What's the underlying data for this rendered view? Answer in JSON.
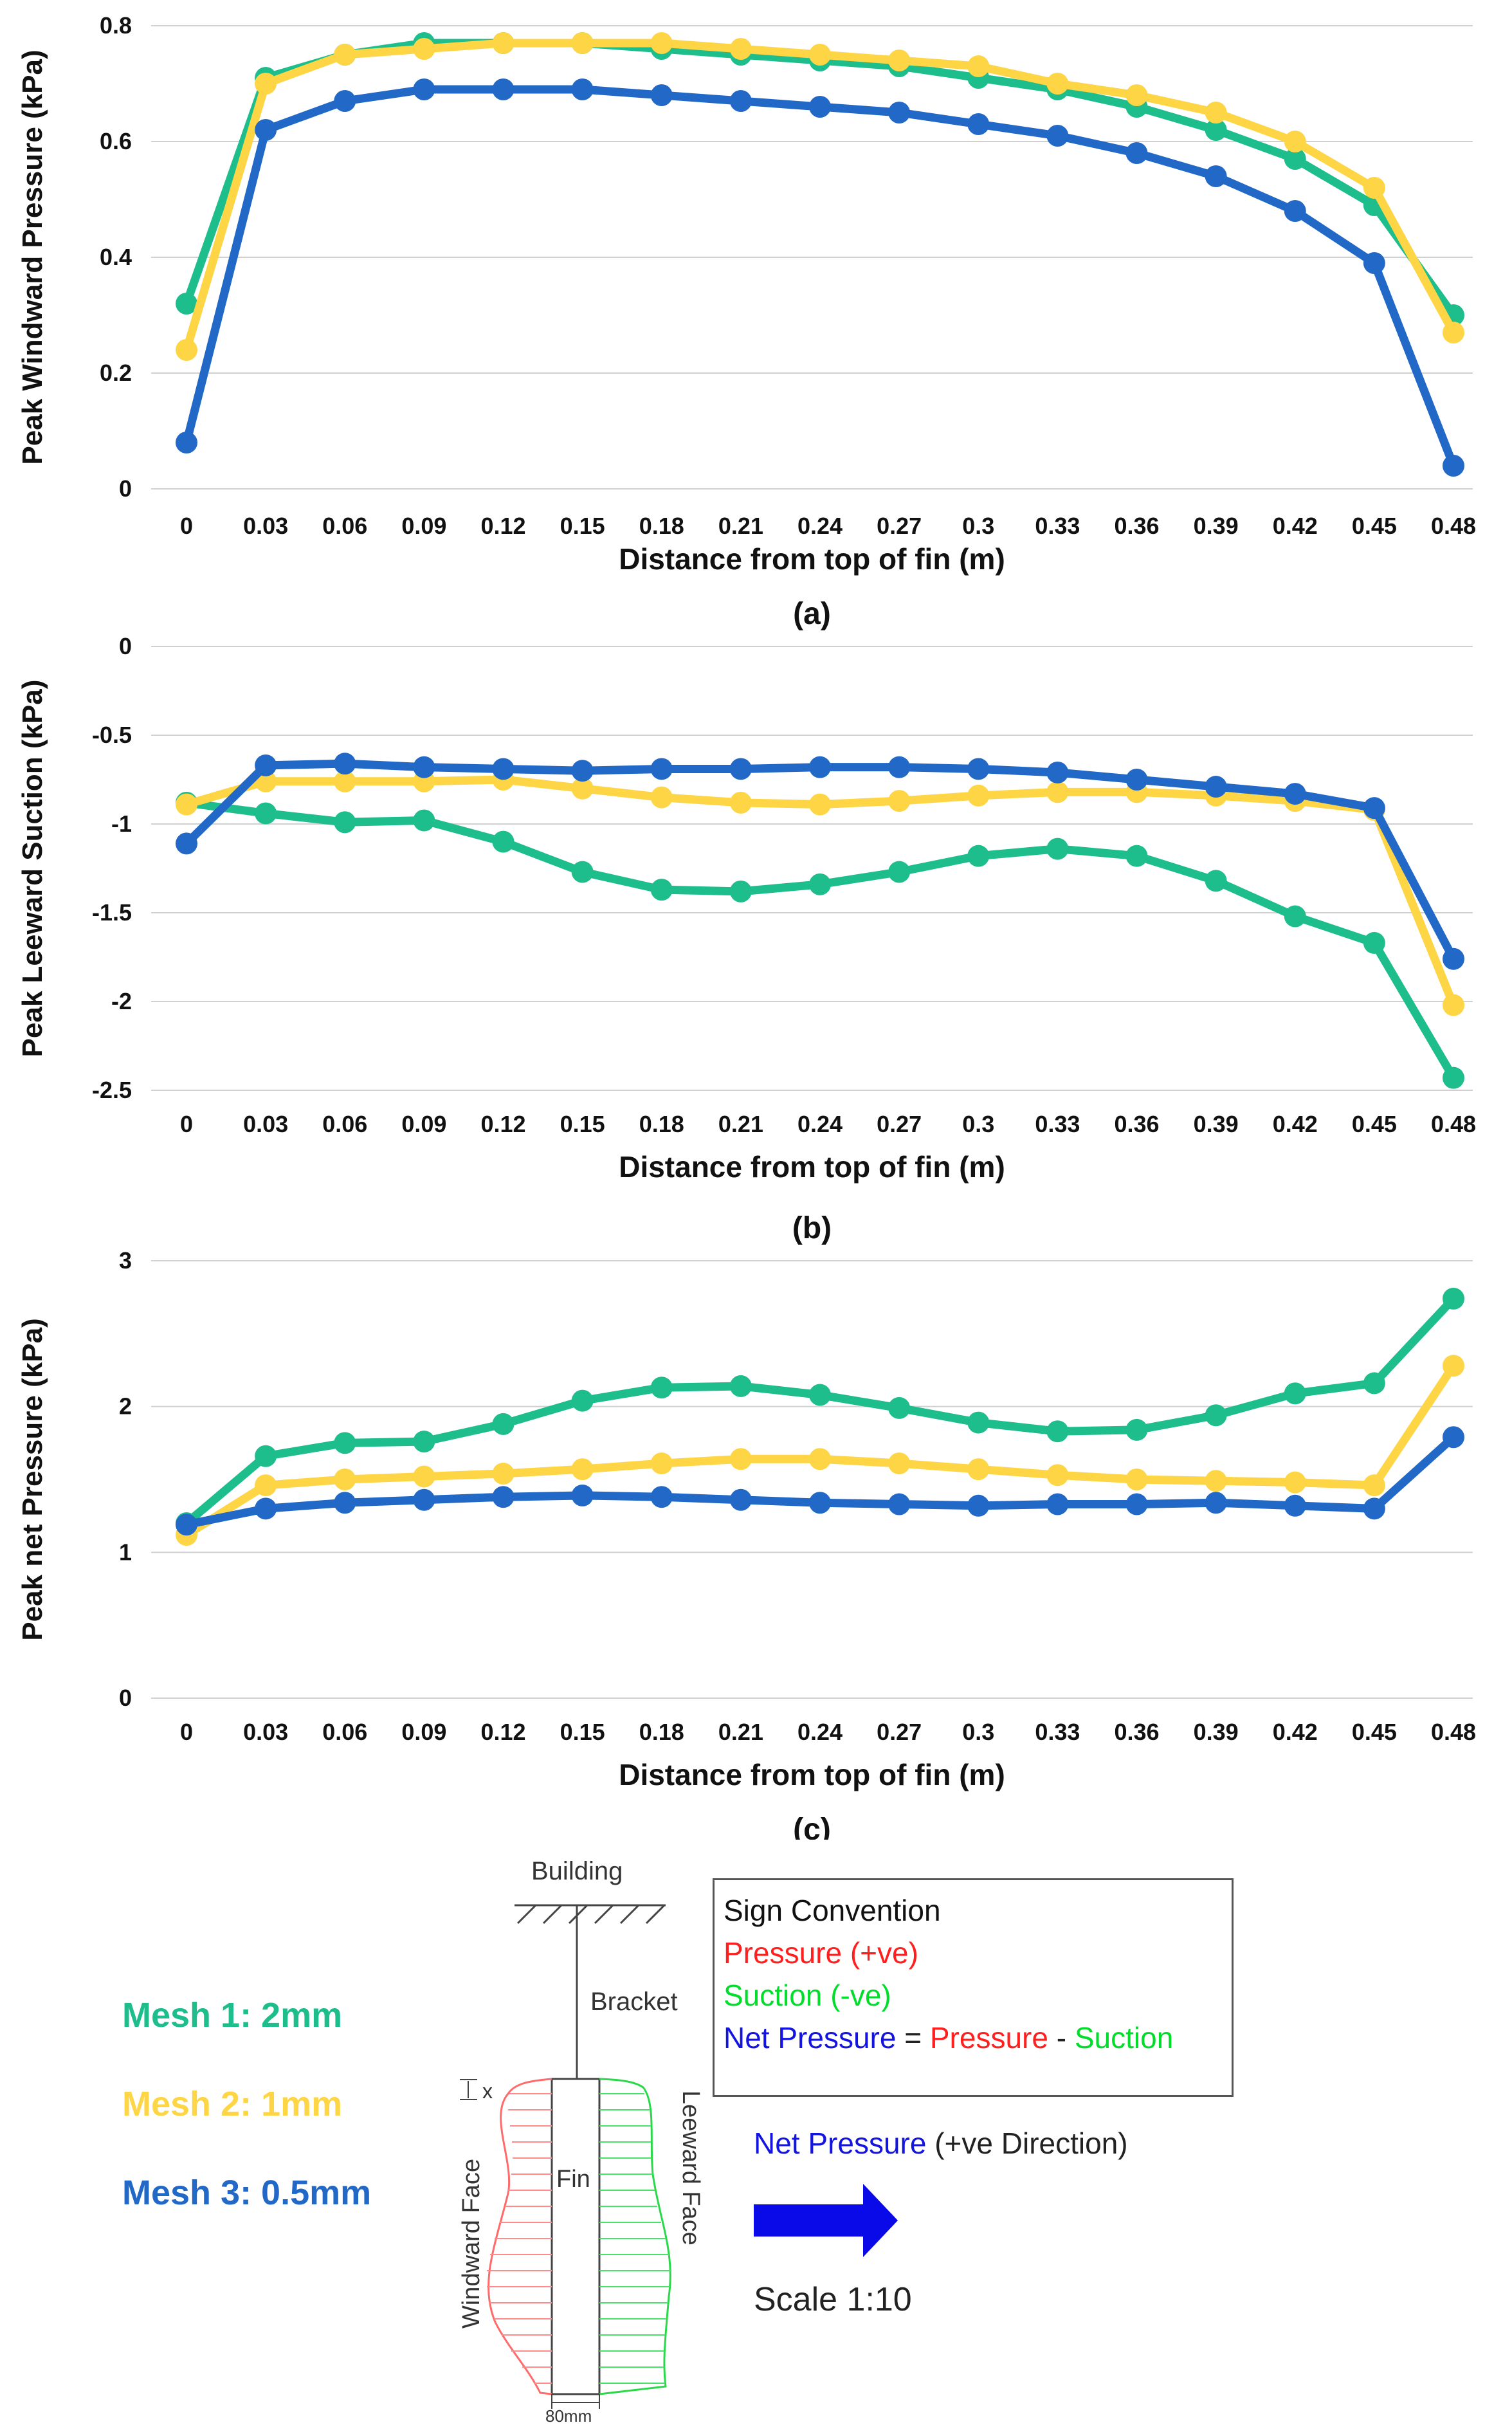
{
  "colors": {
    "mesh1": "#1ebd8c",
    "mesh2": "#fdd545",
    "mesh3": "#2168c7",
    "axis": "#d0d0d0",
    "text": "#111111"
  },
  "chart_data": [
    {
      "type": "line",
      "panel": "(a)",
      "title": "",
      "xlabel": "Distance from top of fin (m)",
      "ylabel": "Peak Windward Pressure (kPa)",
      "categories": [
        "0",
        "0.03",
        "0.06",
        "0.09",
        "0.12",
        "0.15",
        "0.18",
        "0.21",
        "0.24",
        "0.27",
        "0.3",
        "0.33",
        "0.36",
        "0.39",
        "0.42",
        "0.45",
        "0.48"
      ],
      "ylim": [
        0,
        0.8
      ],
      "yticks": [
        0,
        0.2,
        0.4,
        0.6,
        0.8
      ],
      "ytick_labels": [
        "0",
        "0.2",
        "0.4",
        "0.6",
        "0.8"
      ],
      "series": [
        {
          "name": "Mesh 1: 2mm",
          "color_key": "mesh1",
          "values": [
            0.32,
            0.71,
            0.75,
            0.77,
            0.77,
            0.77,
            0.76,
            0.75,
            0.74,
            0.73,
            0.71,
            0.69,
            0.66,
            0.62,
            0.57,
            0.49,
            0.3
          ]
        },
        {
          "name": "Mesh 2: 1mm",
          "color_key": "mesh2",
          "values": [
            0.24,
            0.7,
            0.75,
            0.76,
            0.77,
            0.77,
            0.77,
            0.76,
            0.75,
            0.74,
            0.73,
            0.7,
            0.68,
            0.65,
            0.6,
            0.52,
            0.27
          ]
        },
        {
          "name": "Mesh 3: 0.5mm",
          "color_key": "mesh3",
          "values": [
            0.08,
            0.62,
            0.67,
            0.69,
            0.69,
            0.69,
            0.68,
            0.67,
            0.66,
            0.65,
            0.63,
            0.61,
            0.58,
            0.54,
            0.48,
            0.39,
            0.04
          ]
        }
      ]
    },
    {
      "type": "line",
      "panel": "(b)",
      "title": "",
      "xlabel": "Distance from top of fin (m)",
      "ylabel": "Peak Leeward Suction (kPa)",
      "categories": [
        "0",
        "0.03",
        "0.06",
        "0.09",
        "0.12",
        "0.15",
        "0.18",
        "0.21",
        "0.24",
        "0.27",
        "0.3",
        "0.33",
        "0.36",
        "0.39",
        "0.42",
        "0.45",
        "0.48"
      ],
      "ylim": [
        -2.5,
        0
      ],
      "yticks": [
        0,
        -0.5,
        -1,
        -1.5,
        -2,
        -2.5
      ],
      "ytick_labels": [
        "0",
        "-0.5",
        "-1",
        "-1.5",
        "-2",
        "-2.5"
      ],
      "series": [
        {
          "name": "Mesh 1: 2mm",
          "color_key": "mesh1",
          "values": [
            -0.88,
            -0.94,
            -0.99,
            -0.98,
            -1.1,
            -1.27,
            -1.37,
            -1.38,
            -1.34,
            -1.27,
            -1.18,
            -1.14,
            -1.18,
            -1.32,
            -1.52,
            -1.67,
            -2.43
          ]
        },
        {
          "name": "Mesh 2: 1mm",
          "color_key": "mesh2",
          "values": [
            -0.89,
            -0.76,
            -0.76,
            -0.76,
            -0.75,
            -0.8,
            -0.85,
            -0.88,
            -0.89,
            -0.87,
            -0.84,
            -0.82,
            -0.82,
            -0.84,
            -0.87,
            -0.92,
            -2.02
          ]
        },
        {
          "name": "Mesh 3: 0.5mm",
          "color_key": "mesh3",
          "values": [
            -1.11,
            -0.67,
            -0.66,
            -0.68,
            -0.69,
            -0.7,
            -0.69,
            -0.69,
            -0.68,
            -0.68,
            -0.69,
            -0.71,
            -0.75,
            -0.79,
            -0.83,
            -0.91,
            -1.76
          ]
        }
      ]
    },
    {
      "type": "line",
      "panel": "(c)",
      "title": "",
      "xlabel": "Distance from top of fin (m)",
      "ylabel": "Peak net Pressure (kPa)",
      "categories": [
        "0",
        "0.03",
        "0.06",
        "0.09",
        "0.12",
        "0.15",
        "0.18",
        "0.21",
        "0.24",
        "0.27",
        "0.3",
        "0.33",
        "0.36",
        "0.39",
        "0.42",
        "0.45",
        "0.48"
      ],
      "ylim": [
        0,
        3
      ],
      "yticks": [
        0,
        1,
        2,
        3
      ],
      "ytick_labels": [
        "0",
        "1",
        "2",
        "3"
      ],
      "series": [
        {
          "name": "Mesh 1: 2mm",
          "color_key": "mesh1",
          "values": [
            1.2,
            1.66,
            1.75,
            1.76,
            1.88,
            2.04,
            2.13,
            2.14,
            2.08,
            1.99,
            1.89,
            1.83,
            1.84,
            1.94,
            2.09,
            2.16,
            2.74
          ]
        },
        {
          "name": "Mesh 2: 1mm",
          "color_key": "mesh2",
          "values": [
            1.12,
            1.46,
            1.5,
            1.52,
            1.54,
            1.57,
            1.61,
            1.64,
            1.64,
            1.61,
            1.57,
            1.53,
            1.5,
            1.49,
            1.48,
            1.46,
            2.28
          ]
        },
        {
          "name": "Mesh 3: 0.5mm",
          "color_key": "mesh3",
          "values": [
            1.19,
            1.3,
            1.34,
            1.36,
            1.38,
            1.39,
            1.38,
            1.36,
            1.34,
            1.33,
            1.32,
            1.33,
            1.33,
            1.34,
            1.32,
            1.3,
            1.79
          ]
        }
      ]
    }
  ],
  "legend": [
    {
      "label": "Mesh 1: 2mm",
      "color_key": "mesh1"
    },
    {
      "label": "Mesh 2: 1mm",
      "color_key": "mesh2"
    },
    {
      "label": "Mesh 3: 0.5mm",
      "color_key": "mesh3"
    }
  ],
  "schematic": {
    "building_label": "Building",
    "bracket_label": "Bracket",
    "fin_label": "Fin",
    "windward_label": "Windward Face",
    "leeward_label": "Leeward Face",
    "x_label": "x",
    "width_label": "80mm",
    "sign_convention": {
      "title": "Sign Convention",
      "pressure": "Pressure (+ve)",
      "suction": "Suction (-ve)",
      "net_label": "Net Pressure",
      "eq": "=",
      "eq_pressure": "Pressure",
      "minus": "-",
      "eq_suction": "Suction"
    },
    "net_direction_label": "Net Pressure",
    "net_direction_suffix": "(+ve Direction)",
    "scale": "Scale 1:10"
  }
}
